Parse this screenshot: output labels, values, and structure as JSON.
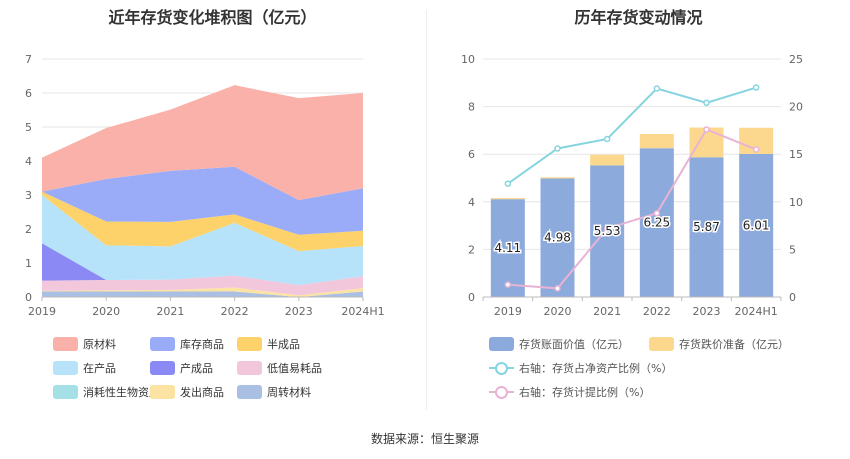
{
  "footer": {
    "source": "数据来源：恒生聚源"
  },
  "colors": {
    "raw_materials": "#fab1a9",
    "goods_in_stock": "#9aacf8",
    "semi_finished": "#fdd26a",
    "wip": "#b6e3fa",
    "finished_products": "#8b8af5",
    "low_value": "#f2c7dc",
    "bio_assets": "#a4e0e6",
    "goods_shipped": "#fde3a3",
    "turnover_materials": "#a9bfe3",
    "book_value_bar": "#8caadc",
    "impairment_bar": "#fcd88e",
    "ratio_line": "#86d4e0",
    "provision_line": "#e8b3d4"
  },
  "left_chart": {
    "title": "近年存货变化堆积图（亿元）"
  },
  "right_chart": {
    "title": "历年存货变动情况"
  },
  "chart_data": [
    {
      "type": "area",
      "title": "近年存货变化堆积图（亿元）",
      "x": [
        "2019",
        "2020",
        "2021",
        "2022",
        "2023",
        "2024H1"
      ],
      "ylim": [
        0,
        7
      ],
      "yticks": [
        "0",
        "1",
        "2",
        "3",
        "4",
        "5",
        "6",
        "7"
      ],
      "stacked": true,
      "grid": true,
      "legend_position": "bottom",
      "series": [
        {
          "name": "周转材料",
          "color_key": "turnover_materials",
          "values": [
            0.16,
            0.16,
            0.16,
            0.16,
            0.0,
            0.16
          ]
        },
        {
          "name": "发出商品",
          "color_key": "goods_shipped",
          "values": [
            0.02,
            0.04,
            0.05,
            0.12,
            0.05,
            0.1
          ]
        },
        {
          "name": "消耗性生物资产",
          "color_key": "bio_assets",
          "values": [
            0.0,
            0.0,
            0.0,
            0.0,
            0.0,
            0.0
          ]
        },
        {
          "name": "低值易耗品",
          "color_key": "low_value",
          "values": [
            0.3,
            0.3,
            0.3,
            0.35,
            0.3,
            0.35
          ]
        },
        {
          "name": "产成品",
          "color_key": "finished_products",
          "values": [
            1.1,
            0.0,
            0.0,
            0.0,
            0.0,
            0.0
          ]
        },
        {
          "name": "在产品",
          "color_key": "wip",
          "values": [
            1.42,
            1.02,
            0.98,
            1.55,
            1.0,
            0.89
          ]
        },
        {
          "name": "半成品",
          "color_key": "semi_finished",
          "values": [
            0.1,
            0.7,
            0.72,
            0.25,
            0.48,
            0.45
          ]
        },
        {
          "name": "库存商品",
          "color_key": "goods_in_stock",
          "values": [
            0.0,
            1.25,
            1.5,
            1.4,
            1.02,
            1.25
          ]
        },
        {
          "name": "原材料",
          "color_key": "raw_materials",
          "values": [
            1.0,
            1.5,
            1.8,
            2.4,
            3.0,
            2.8
          ]
        }
      ],
      "legend_order": [
        "原材料",
        "库存商品",
        "半成品",
        "在产品",
        "产成品",
        "低值易耗品",
        "消耗性生物资产",
        "发出商品",
        "周转材料"
      ]
    },
    {
      "type": "bar",
      "title": "历年存货变动情况",
      "categories": [
        "2019",
        "2020",
        "2021",
        "2022",
        "2023",
        "2024H1"
      ],
      "stacked": true,
      "ylim_left": [
        0,
        10
      ],
      "yticks_left": [
        "0",
        "2",
        "4",
        "6",
        "8",
        "10"
      ],
      "ylim_right": [
        0,
        25
      ],
      "yticks_right": [
        "0",
        "5",
        "10",
        "15",
        "20",
        "25"
      ],
      "legend_position": "bottom",
      "series": [
        {
          "name": "存货账面价值（亿元）",
          "axis": "left",
          "kind": "bar",
          "color_key": "book_value_bar",
          "values": [
            4.11,
            4.98,
            5.53,
            6.25,
            5.87,
            6.01
          ],
          "labels": [
            "4.11",
            "4.98",
            "5.53",
            "6.25",
            "5.87",
            "6.01"
          ]
        },
        {
          "name": "存货跌价准备（亿元）",
          "axis": "left",
          "kind": "bar",
          "color_key": "impairment_bar",
          "values": [
            0.05,
            0.05,
            0.45,
            0.6,
            1.25,
            1.1
          ]
        },
        {
          "name": "右轴：存货占净资产比例（%）",
          "axis": "right",
          "kind": "line",
          "color_key": "ratio_line",
          "values": [
            11.9,
            15.6,
            16.6,
            21.9,
            20.4,
            22.0
          ]
        },
        {
          "name": "右轴：存货计提比例（%）",
          "axis": "right",
          "kind": "line",
          "color_key": "provision_line",
          "values": [
            1.3,
            0.9,
            7.2,
            8.8,
            17.6,
            15.5
          ]
        }
      ]
    }
  ]
}
